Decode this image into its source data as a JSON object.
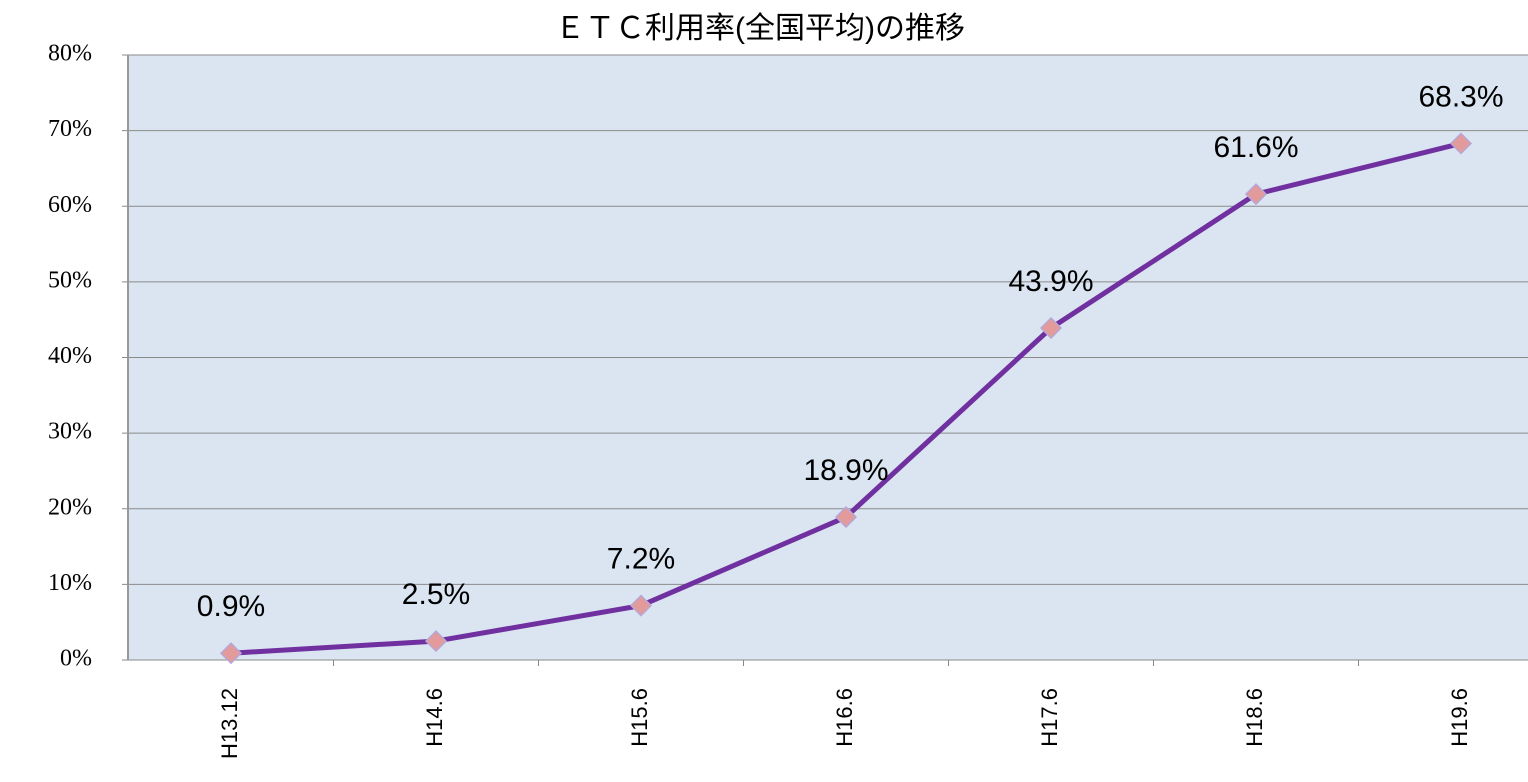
{
  "chart_data": {
    "type": "line",
    "title": "ＥＴＣ利用率(全国平均)の推移",
    "categories": [
      "H13.12",
      "H14.6",
      "H15.6",
      "H16.6",
      "H17.6",
      "H18.6",
      "H19.6"
    ],
    "series": [
      {
        "name": "ETC利用率",
        "color": "#7030a0",
        "marker_color": "#e39a9a",
        "values": [
          0.9,
          2.5,
          7.2,
          18.9,
          43.9,
          61.6,
          68.3
        ],
        "value_labels": [
          "0.9%",
          "2.5%",
          "7.2%",
          "18.9%",
          "43.9%",
          "61.6%",
          "68.3%"
        ]
      }
    ],
    "ylim": [
      0,
      80
    ],
    "yticks": [
      {
        "value": 0,
        "label": "0%"
      },
      {
        "value": 10,
        "label": "10%"
      },
      {
        "value": 20,
        "label": "20%"
      },
      {
        "value": 30,
        "label": "30%"
      },
      {
        "value": 40,
        "label": "40%"
      },
      {
        "value": 50,
        "label": "50%"
      },
      {
        "value": 60,
        "label": "60%"
      },
      {
        "value": 70,
        "label": "70%"
      },
      {
        "value": 80,
        "label": "80%"
      }
    ],
    "grid": true
  }
}
